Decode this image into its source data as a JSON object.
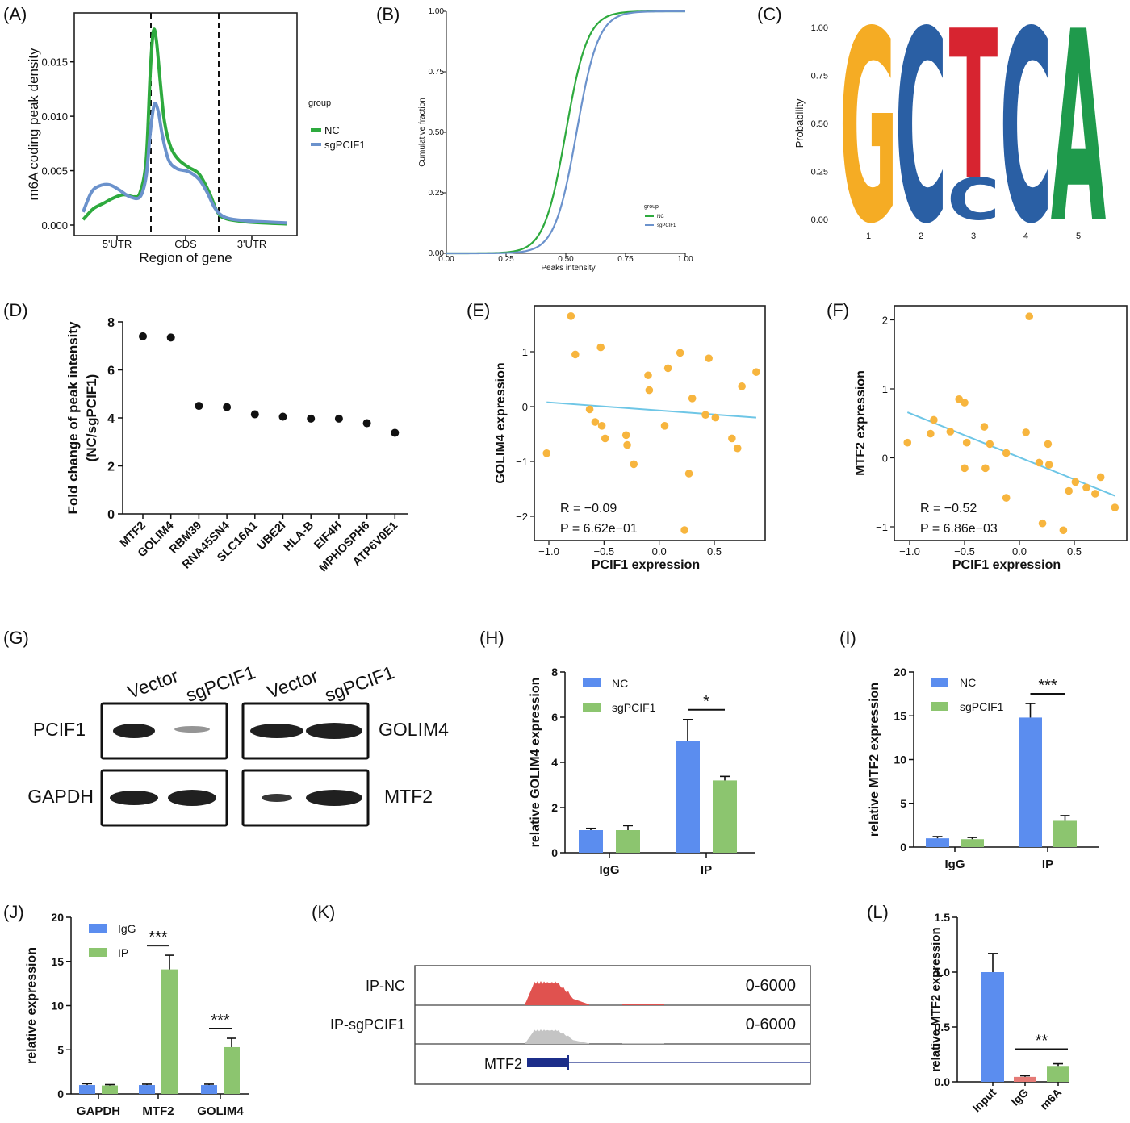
{
  "chart_data": [
    {
      "panel": "(A)",
      "type": "line",
      "xlabel": "Region of gene",
      "ylabel": "m6A coding peak density",
      "regions": [
        "5'UTR",
        "CDS",
        "3'UTR"
      ],
      "yticks": [
        "0.000",
        "0.005",
        "0.010",
        "0.015"
      ],
      "ylim": [
        0,
        0.0195
      ],
      "legend_title": "group",
      "series": [
        {
          "name": "NC",
          "color": "#2eaa3e",
          "points": [
            [
              0.0,
              0.0005
            ],
            [
              0.05,
              0.0015
            ],
            [
              0.1,
              0.002
            ],
            [
              0.15,
              0.0025
            ],
            [
              0.2,
              0.0028
            ],
            [
              0.25,
              0.0026
            ],
            [
              0.28,
              0.003
            ],
            [
              0.31,
              0.006
            ],
            [
              0.33,
              0.014
            ],
            [
              0.345,
              0.0178
            ],
            [
              0.36,
              0.017
            ],
            [
              0.38,
              0.013
            ],
            [
              0.4,
              0.0095
            ],
            [
              0.43,
              0.0072
            ],
            [
              0.47,
              0.006
            ],
            [
              0.52,
              0.0053
            ],
            [
              0.57,
              0.0047
            ],
            [
              0.62,
              0.003
            ],
            [
              0.66,
              0.0012
            ],
            [
              0.7,
              0.0006
            ],
            [
              0.8,
              0.0003
            ],
            [
              1.0,
              0.0001
            ]
          ]
        },
        {
          "name": "sgPCIF1",
          "color": "#6b92cc",
          "points": [
            [
              0.0,
              0.0012
            ],
            [
              0.04,
              0.003
            ],
            [
              0.08,
              0.0036
            ],
            [
              0.13,
              0.0037
            ],
            [
              0.18,
              0.0032
            ],
            [
              0.23,
              0.0026
            ],
            [
              0.28,
              0.0026
            ],
            [
              0.31,
              0.0045
            ],
            [
              0.33,
              0.0085
            ],
            [
              0.35,
              0.0111
            ],
            [
              0.37,
              0.0104
            ],
            [
              0.39,
              0.0082
            ],
            [
              0.42,
              0.006
            ],
            [
              0.46,
              0.0052
            ],
            [
              0.52,
              0.0049
            ],
            [
              0.57,
              0.0042
            ],
            [
              0.61,
              0.003
            ],
            [
              0.65,
              0.0015
            ],
            [
              0.7,
              0.0007
            ],
            [
              0.8,
              0.0004
            ],
            [
              1.0,
              0.0002
            ]
          ]
        }
      ]
    },
    {
      "panel": "(B)",
      "type": "line",
      "xlabel": "Peaks intensity",
      "ylabel": "Cumulative fraction",
      "xticks": [
        "0.00",
        "0.25",
        "0.50",
        "0.75",
        "1.00"
      ],
      "yticks": [
        "0.00",
        "0.25",
        "0.50",
        "0.75",
        "1.00"
      ],
      "legend_title": "group",
      "series": [
        {
          "name": "NC",
          "color": "#2eaa3e",
          "mid": 0.5,
          "k": 22
        },
        {
          "name": "sgPCIF1",
          "color": "#6b92cc",
          "mid": 0.545,
          "k": 22
        }
      ]
    },
    {
      "panel": "(C)",
      "type": "sequence-logo",
      "ylabel": "Probability",
      "yticks": [
        "0.00",
        "0.25",
        "0.50",
        "0.75",
        "1.00"
      ],
      "positions": [
        "1",
        "2",
        "3",
        "4",
        "5"
      ],
      "letters": [
        [
          {
            "letter": "G",
            "prob": 1.0,
            "color": "#f5ac24"
          }
        ],
        [
          {
            "letter": "C",
            "prob": 1.0,
            "color": "#2a5fa4"
          }
        ],
        [
          {
            "letter": "C",
            "prob": 0.22,
            "color": "#2a5fa4"
          },
          {
            "letter": "T",
            "prob": 0.78,
            "color": "#d72430"
          }
        ],
        [
          {
            "letter": "C",
            "prob": 1.0,
            "color": "#2a5fa4"
          }
        ],
        [
          {
            "letter": "A",
            "prob": 1.0,
            "color": "#1f9a4c"
          }
        ]
      ]
    },
    {
      "panel": "(D)",
      "type": "scatter",
      "ylabel": "Fold change of peak intensity (NC/sgPCIF1)",
      "ylabel_lines": [
        "Fold change of peak intensity",
        "(NC/sgPCIF1)"
      ],
      "yticks": [
        "0",
        "2",
        "4",
        "6",
        "8"
      ],
      "categories": [
        "MTF2",
        "GOLIM4",
        "RBM39",
        "RNA45SN4",
        "SLC16A1",
        "UBE2I",
        "HLA-B",
        "EIF4H",
        "MPHOSPH6",
        "ATP6V0E1"
      ],
      "values": [
        7.4,
        7.35,
        4.5,
        4.45,
        4.15,
        4.05,
        3.97,
        3.97,
        3.78,
        3.38
      ]
    },
    {
      "panel": "(E)",
      "type": "scatter",
      "xlabel": "PCIF1 expression",
      "ylabel": "GOLIM4 expression",
      "xticks": [
        "-1.0",
        "-0.5",
        "0.0",
        "0.5"
      ],
      "yticks": [
        "-2",
        "-1",
        "0",
        "1"
      ],
      "stats": [
        "R = −0.09",
        "P = 6.62e−01"
      ],
      "points": [
        [
          -1.02,
          -0.85
        ],
        [
          -0.8,
          1.65
        ],
        [
          -0.76,
          0.95
        ],
        [
          -0.63,
          -0.05
        ],
        [
          -0.58,
          -0.28
        ],
        [
          -0.53,
          1.08
        ],
        [
          -0.52,
          -0.35
        ],
        [
          -0.49,
          -0.58
        ],
        [
          -0.3,
          -0.52
        ],
        [
          -0.29,
          -0.7
        ],
        [
          -0.23,
          -1.05
        ],
        [
          -0.1,
          0.57
        ],
        [
          -0.09,
          0.3
        ],
        [
          0.05,
          -0.35
        ],
        [
          0.08,
          0.7
        ],
        [
          0.19,
          0.98
        ],
        [
          0.23,
          -2.25
        ],
        [
          0.27,
          -1.22
        ],
        [
          0.3,
          0.15
        ],
        [
          0.42,
          -0.15
        ],
        [
          0.45,
          0.88
        ],
        [
          0.51,
          -0.2
        ],
        [
          0.66,
          -0.58
        ],
        [
          0.71,
          -0.76
        ],
        [
          0.75,
          0.37
        ],
        [
          0.88,
          0.63
        ]
      ],
      "fit": [
        [
          -1.02,
          0.08
        ],
        [
          0.88,
          -0.2
        ]
      ]
    },
    {
      "panel": "(F)",
      "type": "scatter",
      "xlabel": "PCIF1 expression",
      "ylabel": "MTF2 expression",
      "xticks": [
        "-1.0",
        "-0.5",
        "0.0",
        "0.5"
      ],
      "yticks": [
        "-1",
        "0",
        "1",
        "2"
      ],
      "stats": [
        "R = −0.52",
        "P = 6.86e−03"
      ],
      "points": [
        [
          -1.02,
          0.22
        ],
        [
          -0.81,
          0.35
        ],
        [
          -0.78,
          0.55
        ],
        [
          -0.63,
          0.38
        ],
        [
          -0.55,
          0.85
        ],
        [
          -0.5,
          0.8
        ],
        [
          -0.5,
          -0.15
        ],
        [
          -0.48,
          0.22
        ],
        [
          -0.32,
          0.45
        ],
        [
          -0.31,
          -0.15
        ],
        [
          -0.27,
          0.2
        ],
        [
          -0.12,
          0.07
        ],
        [
          -0.12,
          -0.58
        ],
        [
          0.06,
          0.37
        ],
        [
          0.09,
          2.05
        ],
        [
          0.18,
          -0.07
        ],
        [
          0.21,
          -0.95
        ],
        [
          0.26,
          0.2
        ],
        [
          0.27,
          -0.1
        ],
        [
          0.4,
          -1.05
        ],
        [
          0.45,
          -0.48
        ],
        [
          0.51,
          -0.35
        ],
        [
          0.61,
          -0.43
        ],
        [
          0.69,
          -0.52
        ],
        [
          0.74,
          -0.28
        ],
        [
          0.87,
          -0.72
        ]
      ],
      "fit": [
        [
          -1.02,
          0.66
        ],
        [
          0.87,
          -0.55
        ]
      ]
    },
    {
      "panel": "(G)",
      "type": "western-blot",
      "lanes": [
        "Vector",
        "sgPCIF1",
        "Vector",
        "sgPCIF1"
      ],
      "left_rows": [
        "PCIF1",
        "GAPDH"
      ],
      "right_rows": [
        "GOLIM4",
        "MTF2"
      ]
    },
    {
      "panel": "(H)",
      "type": "bar",
      "ylabel": "relative GOLIM4 expression",
      "categories": [
        "IgG",
        "IP"
      ],
      "yticks": [
        "0",
        "2",
        "4",
        "6",
        "8"
      ],
      "ylim": [
        0,
        8
      ],
      "series": [
        {
          "name": "NC",
          "color": "#5b8def",
          "values": [
            1.0,
            4.95
          ],
          "err": [
            0.08,
            0.95
          ]
        },
        {
          "name": "sgPCIF1",
          "color": "#8cc56f",
          "values": [
            1.0,
            3.2
          ],
          "err": [
            0.2,
            0.18
          ]
        }
      ],
      "significance": [
        {
          "group": 1,
          "label": "*"
        }
      ]
    },
    {
      "panel": "(I)",
      "type": "bar",
      "ylabel": "relative MTF2 expression",
      "categories": [
        "IgG",
        "IP"
      ],
      "yticks": [
        "0",
        "5",
        "10",
        "15",
        "20"
      ],
      "ylim": [
        0,
        20
      ],
      "series": [
        {
          "name": "NC",
          "color": "#5b8def",
          "values": [
            1.0,
            14.8
          ],
          "err": [
            0.2,
            1.6
          ]
        },
        {
          "name": "sgPCIF1",
          "color": "#8cc56f",
          "values": [
            0.9,
            3.0
          ],
          "err": [
            0.2,
            0.6
          ]
        }
      ],
      "significance": [
        {
          "group": 1,
          "label": "***"
        }
      ]
    },
    {
      "panel": "(J)",
      "type": "bar",
      "ylabel": "relative expression",
      "categories": [
        "GAPDH",
        "MTF2",
        "GOLIM4"
      ],
      "yticks": [
        "0",
        "5",
        "10",
        "15",
        "20"
      ],
      "ylim": [
        0,
        20
      ],
      "series": [
        {
          "name": "IgG",
          "color": "#5b8def",
          "values": [
            1.0,
            1.0,
            1.0
          ],
          "err": [
            0.15,
            0.1,
            0.1
          ]
        },
        {
          "name": "IP",
          "color": "#8cc56f",
          "values": [
            0.95,
            14.1,
            5.3
          ],
          "err": [
            0.1,
            1.6,
            1.0
          ]
        }
      ],
      "significance": [
        {
          "group": 1,
          "label": "***"
        },
        {
          "group": 2,
          "label": "***"
        }
      ]
    },
    {
      "panel": "(K)",
      "type": "coverage-track",
      "tracks": [
        {
          "name": "IP-NC",
          "range": "0-6000",
          "color": "#e0524f"
        },
        {
          "name": "IP-sgPCIF1",
          "range": "0-6000",
          "color": "#c4c4c4"
        }
      ],
      "gene": "MTF2"
    },
    {
      "panel": "(L)",
      "type": "bar",
      "ylabel": "relative MTF2 expression",
      "categories": [
        "Input",
        "IgG",
        "m6A"
      ],
      "yticks": [
        "0.0",
        "0.5",
        "1.0",
        "1.5"
      ],
      "ylim": [
        0,
        1.5
      ],
      "values": [
        1.0,
        0.045,
        0.145
      ],
      "err": [
        0.17,
        0.01,
        0.02
      ],
      "colors": [
        "#5b8def",
        "#e57a76",
        "#8cc56f"
      ],
      "significance": [
        {
          "from": 1,
          "to": 2,
          "label": "**"
        }
      ]
    }
  ]
}
